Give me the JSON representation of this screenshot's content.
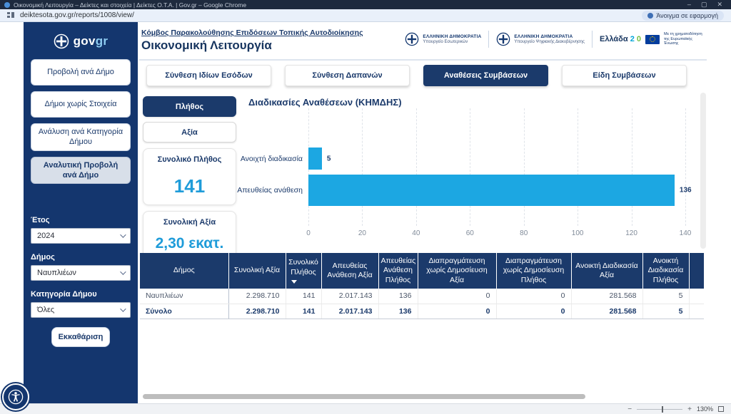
{
  "browser": {
    "window_title": "Οικονομική Λειτουργία – Δείκτες και στοιχεία | Δείκτες Ο.Τ.Α. | Gov.gr – Google Chrome",
    "url": "deiktesota.gov.gr/reports/1008/view/",
    "open_in_app": "Άνοιγμα σε εφαρμογή",
    "window_controls": {
      "minimize": "–",
      "maximize": "▢",
      "close": "✕"
    }
  },
  "sidebar": {
    "logo_gov": "gov",
    "logo_gr": "gr",
    "nav_items": [
      {
        "label": "Προβολή ανά Δήμο",
        "selected": false
      },
      {
        "label": "Δήμοι χωρίς Στοιχεία",
        "selected": false
      },
      {
        "label": "Ανάλυση ανά Κατηγορία Δήμου",
        "selected": false
      },
      {
        "label": "Αναλυτική Προβολή ανά Δήμο",
        "selected": true
      }
    ],
    "filters": [
      {
        "label": "Έτος",
        "value": "2024"
      },
      {
        "label": "Δήμος",
        "value": "Ναυπλιέων"
      },
      {
        "label": "Κατηγορία Δήμου",
        "value": "Όλες"
      }
    ],
    "clear_button": "Εκκαθάριση"
  },
  "header": {
    "breadcrumb": "Κόμβος Παρακολούθησης Επιδόσεων Τοπικής Αυτοδιοίκησης",
    "title": "Οικονομική Λειτουργία",
    "ministry_logos": [
      {
        "line1": "ΕΛΛΗΝΙΚΗ ΔΗΜΟΚΡΑΤΙΑ",
        "line2": "Υπουργείο Εσωτερικών"
      },
      {
        "line1": "ΕΛΛΗΝΙΚΗ ΔΗΜΟΚΡΑΤΙΑ",
        "line2": "Υπουργείο Ψηφιακής Διακυβέρνησης"
      }
    ],
    "greece20": {
      "word": "Ελλάδα",
      "two": "2",
      "zero": "0"
    },
    "eu_funding": "Με τη χρηματοδότηση της Ευρωπαϊκής Ένωσης"
  },
  "tabs": [
    {
      "label": "Σύνθεση Ιδίων Εσόδων",
      "selected": false
    },
    {
      "label": "Σύνθεση Δαπανών",
      "selected": false
    },
    {
      "label": "Αναθέσεις Συμβάσεων",
      "selected": true
    },
    {
      "label": "Είδη Συμβάσεων",
      "selected": false
    }
  ],
  "metric_toggle": [
    {
      "label": "Πλήθος",
      "selected": true
    },
    {
      "label": "Αξία",
      "selected": false
    }
  ],
  "stat_cards": [
    {
      "label": "Συνολικό Πλήθος",
      "value": "141"
    },
    {
      "label": "Συνολική Αξία",
      "value": "2,30 εκατ."
    }
  ],
  "chart_data": {
    "type": "bar",
    "orientation": "horizontal",
    "title": "Διαδικασίες Αναθέσεων (ΚΗΜΔΗΣ)",
    "categories": [
      "Ανοιχτή διαδικασία",
      "Απευθείας ανάθεση"
    ],
    "values": [
      5,
      136
    ],
    "data_labels": [
      "5",
      "136"
    ],
    "xlim": [
      0,
      140
    ],
    "xticks": [
      0,
      20,
      40,
      60,
      80,
      100,
      120,
      140
    ],
    "grid": true,
    "legend": false,
    "bar_color": "#1CA7E2"
  },
  "table": {
    "columns": [
      "Δήμος",
      "Συνολική Αξία",
      "Συνολικό Πλήθος",
      "Απευθείας Ανάθεση Αξία",
      "Απευθείας Ανάθεση Πλήθος",
      "Διαπραγμάτευση χωρίς Δημοσίευση Αξία",
      "Διαπραγμάτευση χωρίς Δημοσίευση Πλήθος",
      "Ανοικτή Διαδικασία Αξία",
      "Ανοικτή Διαδικασία Πλήθος"
    ],
    "sorted_column": "Συνολικό Πλήθος",
    "sorted_column_index": 2,
    "rows": [
      [
        "Ναυπλιέων",
        "2.298.710",
        "141",
        "2.017.143",
        "136",
        "0",
        "0",
        "281.568",
        "5"
      ],
      [
        "Σύνολο",
        "2.298.710",
        "141",
        "2.017.143",
        "136",
        "0",
        "0",
        "281.568",
        "5"
      ]
    ]
  },
  "status_bar": {
    "zoom_out": "−",
    "zoom_in": "+",
    "zoom_level": "130%"
  },
  "colors": {
    "navy": "#1B3A6B",
    "sidebar_navy": "#14366E",
    "accent_blue": "#1F9CD9",
    "bar_blue": "#1CA7E2",
    "titlebar": "#1E2A3E",
    "toolbar_bg": "#E9F0FA"
  }
}
